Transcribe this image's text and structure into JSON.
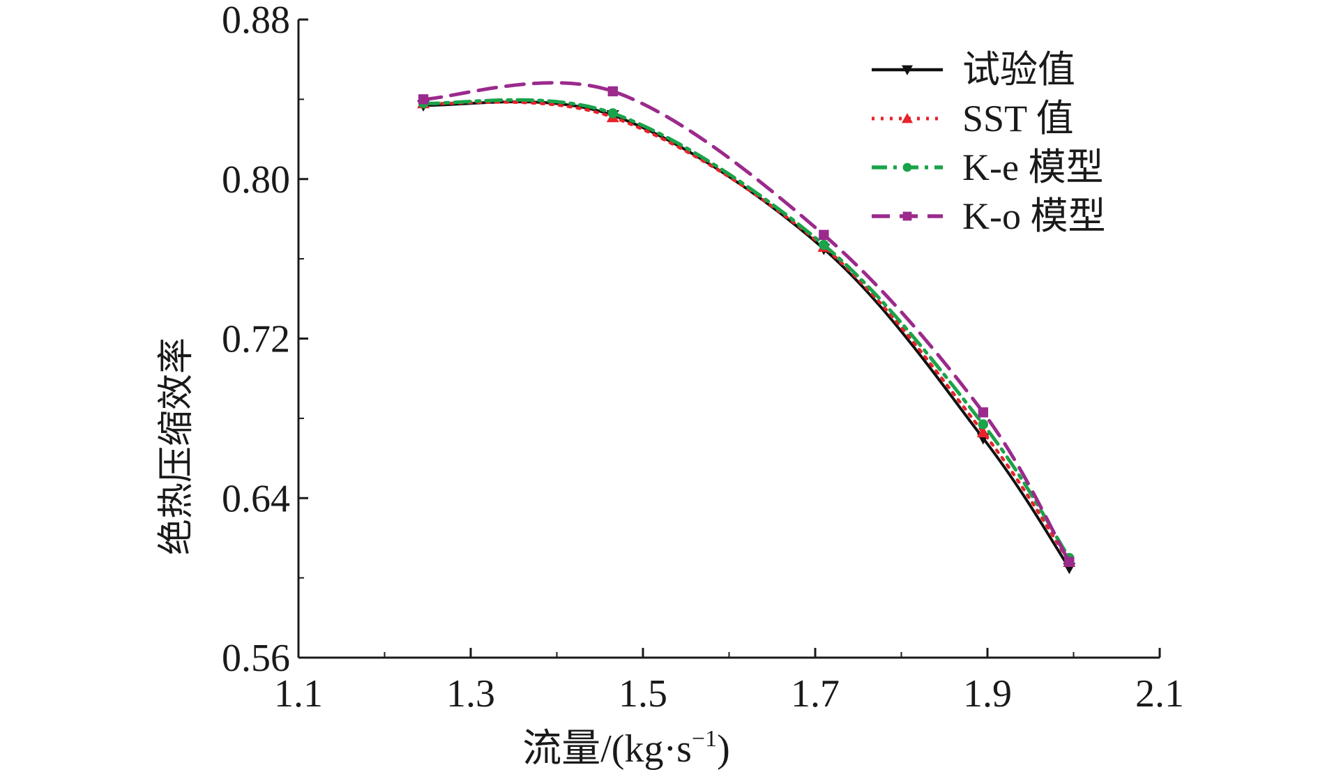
{
  "chart_data": {
    "type": "line",
    "title": "",
    "xlabel": "流量/(kg·s",
    "xlabel_superscript": "−1",
    "xlabel_suffix": ")",
    "ylabel": "绝热压缩效率",
    "xlim": [
      1.1,
      2.1
    ],
    "ylim": [
      0.56,
      0.88
    ],
    "xticks": [
      "1.1",
      "1.3",
      "1.5",
      "1.7",
      "1.9",
      "2.1"
    ],
    "yticks": [
      "0.56",
      "0.64",
      "0.72",
      "0.80",
      "0.88"
    ],
    "x": [
      1.245,
      1.465,
      1.71,
      1.895,
      1.995
    ],
    "series": [
      {
        "name": "试验值",
        "color": "#111111",
        "dash": "solid",
        "marker": "triangle-down",
        "values": [
          0.837,
          0.832,
          0.765,
          0.67,
          0.605
        ]
      },
      {
        "name": "SST 值",
        "color": "#e8232a",
        "dash": "dotted",
        "marker": "triangle-up",
        "values": [
          0.838,
          0.831,
          0.766,
          0.673,
          0.608
        ]
      },
      {
        "name": "K-e 模型",
        "color": "#1aa34a",
        "dash": "dashdot",
        "marker": "circle",
        "values": [
          0.838,
          0.833,
          0.767,
          0.677,
          0.61
        ]
      },
      {
        "name": "K-o 模型",
        "color": "#9b2a8c",
        "dash": "dashed",
        "marker": "square",
        "values": [
          0.84,
          0.844,
          0.772,
          0.683,
          0.608
        ]
      }
    ],
    "legend_position": "top-right"
  }
}
